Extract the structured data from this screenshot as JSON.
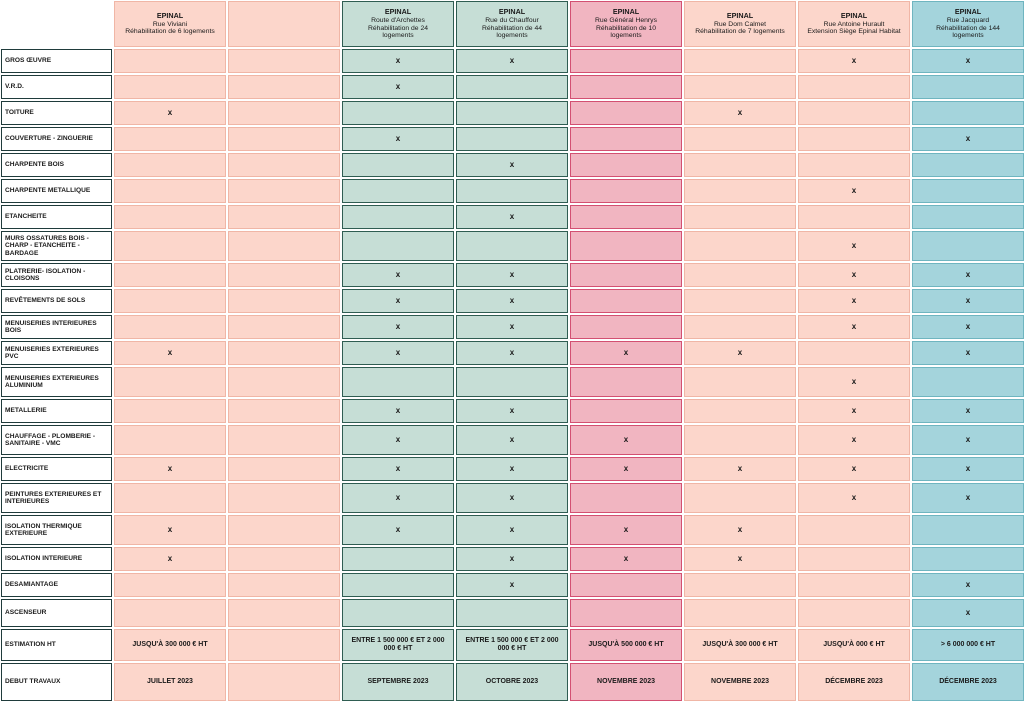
{
  "colors": {
    "salmon": "#fcd6cb",
    "green": "#c6ded6",
    "pink": "#f1b5c1",
    "blue": "#a4d4dc"
  },
  "mark_symbol": "x",
  "columns": [
    {
      "color": "salmon",
      "city": "EPINAL",
      "lines": [
        "Rue Viviani",
        "Réhabilitation de 6 logements"
      ]
    },
    {
      "color": "salmon",
      "city": "",
      "lines": []
    },
    {
      "color": "green",
      "city": "EPINAL",
      "lines": [
        "Route d'Archettes",
        "Réhabilitation de 24",
        "logements"
      ]
    },
    {
      "color": "green",
      "city": "EPINAL",
      "lines": [
        "Rue du Chauffour",
        "Réhabilitation de 44",
        "logements"
      ]
    },
    {
      "color": "pink",
      "city": "EPINAL",
      "lines": [
        "Rue Général Henrys",
        "Réhabilitation de 10",
        "logements"
      ]
    },
    {
      "color": "salmon",
      "city": "EPINAL",
      "lines": [
        "Rue Dom Calmet",
        "Réhabilitation de 7 logements"
      ]
    },
    {
      "color": "salmon",
      "city": "EPINAL",
      "lines": [
        "Rue Antoine Hurault",
        "Extension Siège Epinal Habitat"
      ]
    },
    {
      "color": "blue",
      "city": "EPINAL",
      "lines": [
        "Rue Jacquard",
        "Réhabilitation de 144",
        "logements"
      ]
    }
  ],
  "rows": [
    {
      "label": "GROS ŒUVRE",
      "marks": [
        0,
        0,
        1,
        1,
        0,
        0,
        1,
        1
      ]
    },
    {
      "label": "V.R.D.",
      "marks": [
        0,
        0,
        1,
        0,
        0,
        0,
        0,
        0
      ]
    },
    {
      "label": "TOITURE",
      "marks": [
        1,
        0,
        0,
        0,
        0,
        1,
        0,
        0
      ]
    },
    {
      "label": "COUVERTURE - ZINGUERIE",
      "marks": [
        0,
        0,
        1,
        0,
        0,
        0,
        0,
        1
      ]
    },
    {
      "label": "CHARPENTE BOIS",
      "marks": [
        0,
        0,
        0,
        1,
        0,
        0,
        0,
        0
      ]
    },
    {
      "label": "CHARPENTE METALLIQUE",
      "marks": [
        0,
        0,
        0,
        0,
        0,
        0,
        1,
        0
      ]
    },
    {
      "label": "ETANCHEITE",
      "marks": [
        0,
        0,
        0,
        1,
        0,
        0,
        0,
        0
      ]
    },
    {
      "label": "MURS OSSATURES BOIS - CHARP - ETANCHEITE - BARDAGE",
      "marks": [
        0,
        0,
        0,
        0,
        0,
        0,
        1,
        0
      ]
    },
    {
      "label": "PLATRERIE- ISOLATION - CLOISONS",
      "marks": [
        0,
        0,
        1,
        1,
        0,
        0,
        1,
        1
      ]
    },
    {
      "label": "REVÊTEMENTS DE SOLS",
      "marks": [
        0,
        0,
        1,
        1,
        0,
        0,
        1,
        1
      ]
    },
    {
      "label": "MENUISERIES INTERIEURES BOIS",
      "marks": [
        0,
        0,
        1,
        1,
        0,
        0,
        1,
        1
      ]
    },
    {
      "label": "MENUISERIES EXTERIEURES PVC",
      "marks": [
        1,
        0,
        1,
        1,
        1,
        1,
        0,
        1
      ]
    },
    {
      "label": "MENUISERIES EXTERIEURES ALUMINIUM",
      "marks": [
        0,
        0,
        0,
        0,
        0,
        0,
        1,
        0
      ]
    },
    {
      "label": "METALLERIE",
      "marks": [
        0,
        0,
        1,
        1,
        0,
        0,
        1,
        1
      ]
    },
    {
      "label": "CHAUFFAGE - PLOMBERIE - SANITAIRE - VMC",
      "marks": [
        0,
        0,
        1,
        1,
        1,
        0,
        1,
        1
      ]
    },
    {
      "label": "ELECTRICITE",
      "marks": [
        1,
        0,
        1,
        1,
        1,
        1,
        1,
        1
      ]
    },
    {
      "label": "PEINTURES EXTERIEURES ET INTERIEURES",
      "marks": [
        0,
        0,
        1,
        1,
        0,
        0,
        1,
        1
      ]
    },
    {
      "label": "ISOLATION THERMIQUE EXTERIEURE",
      "marks": [
        1,
        0,
        1,
        1,
        1,
        1,
        0,
        0
      ]
    },
    {
      "label": "ISOLATION INTERIEURE",
      "marks": [
        1,
        0,
        0,
        1,
        1,
        1,
        0,
        0
      ]
    },
    {
      "label": "DESAMIANTAGE",
      "marks": [
        0,
        0,
        0,
        1,
        0,
        0,
        0,
        1
      ]
    },
    {
      "label": "ASCENSEUR",
      "marks": [
        0,
        0,
        0,
        0,
        0,
        0,
        0,
        1
      ]
    }
  ],
  "estimation": {
    "label": "ESTIMATION  HT",
    "values": [
      "JUSQU'À 300 000 € HT",
      "",
      "ENTRE 1 500 000 € ET 2 000 000 € HT",
      "ENTRE 1 500 000 € ET 2 000 000 € HT",
      "JUSQU'À  500 000 € HT",
      "JUSQU'À 300 000 € HT",
      "JUSQU'À   000 € HT",
      "> 6 000 000 € HT"
    ]
  },
  "debut": {
    "label": "DEBUT TRAVAUX",
    "values": [
      "JUILLET 2023",
      "",
      "SEPTEMBRE 2023",
      "OCTOBRE 2023",
      "NOVEMBRE 2023",
      "NOVEMBRE 2023",
      "DÉCEMBRE 2023",
      "DÉCEMBRE 2023"
    ]
  }
}
